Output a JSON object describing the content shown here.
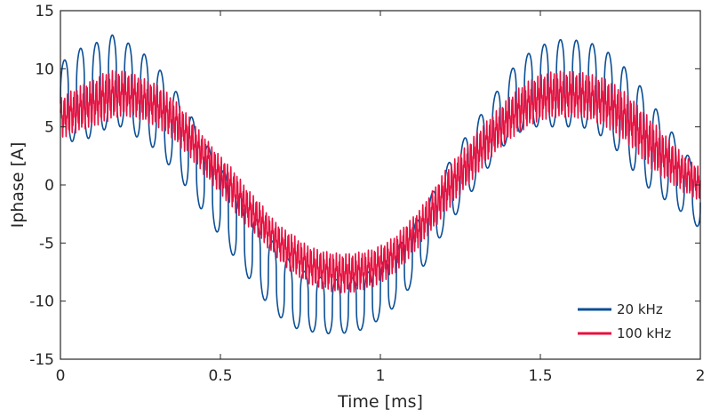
{
  "chart_data": {
    "type": "line",
    "title": "",
    "xlabel": "Time [ms]",
    "ylabel": "Iphase [A]",
    "xlim": [
      0,
      2
    ],
    "ylim": [
      -15,
      15
    ],
    "xticks": [
      0,
      0.5,
      1,
      1.5,
      2
    ],
    "xtick_labels": [
      "0",
      "0.5",
      "1",
      "1.5",
      "2"
    ],
    "yticks": [
      -15,
      -10,
      -5,
      0,
      5,
      10,
      15
    ],
    "ytick_labels": [
      "-15",
      "-10",
      "-5",
      "0",
      "5",
      "10",
      "15"
    ],
    "grid": false,
    "legend_position": "bottom-right",
    "series": [
      {
        "name": "20 kHz",
        "color": "#0b4f96",
        "x": [
          0,
          0.025,
          0.05,
          0.075,
          0.1,
          0.125,
          0.15,
          0.175,
          0.2,
          0.225,
          0.25,
          0.275,
          0.3,
          0.325,
          0.35,
          0.375,
          0.4,
          0.425,
          0.45,
          0.475,
          0.5,
          0.525,
          0.55,
          0.575,
          0.6,
          0.625,
          0.65,
          0.675,
          0.7,
          0.725,
          0.75,
          0.775,
          0.8,
          0.825,
          0.85,
          0.875,
          0.9,
          0.925,
          0.95,
          0.975,
          1,
          1.025,
          1.05,
          1.075,
          1.1,
          1.125,
          1.15,
          1.175,
          1.2,
          1.225,
          1.25,
          1.275,
          1.3,
          1.325,
          1.35,
          1.375,
          1.4,
          1.425,
          1.45,
          1.475,
          1.5,
          1.525,
          1.55,
          1.575,
          1.6,
          1.625,
          1.65,
          1.675,
          1.7,
          1.725,
          1.75,
          1.775,
          1.8,
          1.825,
          1.85,
          1.875,
          1.9,
          1.925,
          1.95,
          1.975,
          2
        ],
        "upper": [
          10.5,
          11.0,
          11.5,
          12.0,
          12.0,
          12.5,
          13.0,
          12.8,
          12.4,
          12.0,
          11.5,
          11.0,
          10.2,
          9.5,
          8.5,
          7.5,
          6.5,
          5.0,
          3.8,
          2.8,
          1.8,
          0.5,
          -0.5,
          -1.5,
          -2.5,
          -3.5,
          -4.5,
          -5.2,
          -6.0,
          -6.8,
          -7.3,
          -7.6,
          -7.9,
          -8.0,
          -8.1,
          -8.2,
          -8.1,
          -7.9,
          -7.7,
          -7.3,
          -6.8,
          -6.2,
          -5.5,
          -4.5,
          -3.7,
          -2.5,
          -1.3,
          0.0,
          1.2,
          2.5,
          3.5,
          4.5,
          5.5,
          6.5,
          7.5,
          8.5,
          9.5,
          10.5,
          11.0,
          11.6,
          12.0,
          12.2,
          12.4,
          12.6,
          12.5,
          12.4,
          12.3,
          12.0,
          11.6,
          11.2,
          10.5,
          9.8,
          9.0,
          8.0,
          7.0,
          6.0,
          5.0,
          4.0,
          3.0,
          2.0,
          1.0
        ],
        "lower": [
          3.5,
          3.5,
          4.0,
          4.0,
          4.0,
          4.5,
          5.0,
          5.0,
          5.0,
          4.5,
          3.8,
          3.5,
          3.0,
          2.0,
          1.5,
          0.5,
          -0.5,
          -1.5,
          -2.5,
          -3.5,
          -4.5,
          -5.5,
          -6.5,
          -7.5,
          -8.5,
          -9.5,
          -10.3,
          -11.0,
          -11.8,
          -12.2,
          -12.5,
          -12.6,
          -12.7,
          -12.8,
          -12.8,
          -12.8,
          -12.7,
          -12.6,
          -12.4,
          -12.0,
          -11.5,
          -11.0,
          -10.3,
          -9.5,
          -8.5,
          -7.5,
          -6.3,
          -5.0,
          -4.0,
          -3.0,
          -2.0,
          -1.0,
          0.0,
          1.0,
          2.0,
          3.0,
          3.8,
          4.3,
          4.8,
          5.0,
          5.0,
          5.0,
          5.0,
          5.0,
          5.0,
          5.0,
          4.8,
          4.5,
          4.0,
          3.5,
          2.5,
          1.8,
          0.8,
          0.0,
          -0.5,
          -1.0,
          -1.5,
          -2.0,
          -2.5,
          -3.0,
          -4.0
        ]
      },
      {
        "name": "100 kHz",
        "color": "#e8103f",
        "x": [
          0,
          0.025,
          0.05,
          0.075,
          0.1,
          0.125,
          0.15,
          0.175,
          0.2,
          0.225,
          0.25,
          0.275,
          0.3,
          0.325,
          0.35,
          0.375,
          0.4,
          0.425,
          0.45,
          0.475,
          0.5,
          0.525,
          0.55,
          0.575,
          0.6,
          0.625,
          0.65,
          0.675,
          0.7,
          0.725,
          0.75,
          0.775,
          0.8,
          0.825,
          0.85,
          0.875,
          0.9,
          0.925,
          0.95,
          0.975,
          1,
          1.025,
          1.05,
          1.075,
          1.1,
          1.125,
          1.15,
          1.175,
          1.2,
          1.225,
          1.25,
          1.275,
          1.3,
          1.325,
          1.35,
          1.375,
          1.4,
          1.425,
          1.45,
          1.475,
          1.5,
          1.525,
          1.55,
          1.575,
          1.6,
          1.625,
          1.65,
          1.675,
          1.7,
          1.725,
          1.75,
          1.775,
          1.8,
          1.825,
          1.85,
          1.875,
          1.9,
          1.925,
          1.95,
          1.975,
          2
        ],
        "upper": [
          7.5,
          8.0,
          8.3,
          8.8,
          9.0,
          9.5,
          9.8,
          9.9,
          9.8,
          9.6,
          9.3,
          9.0,
          8.7,
          8.2,
          7.5,
          6.8,
          6.0,
          5.0,
          4.2,
          3.3,
          2.5,
          1.8,
          1.0,
          0.0,
          -0.8,
          -1.5,
          -2.5,
          -3.2,
          -3.8,
          -4.2,
          -4.8,
          -5.2,
          -5.5,
          -5.7,
          -5.8,
          -5.9,
          -5.9,
          -5.8,
          -5.7,
          -5.5,
          -5.2,
          -4.8,
          -4.3,
          -3.5,
          -2.8,
          -2.0,
          -1.0,
          0.0,
          1.2,
          2.0,
          2.8,
          3.6,
          4.5,
          5.3,
          6.0,
          6.8,
          7.5,
          8.2,
          8.7,
          9.2,
          9.5,
          9.7,
          9.8,
          9.8,
          9.8,
          9.7,
          9.6,
          9.4,
          9.2,
          8.8,
          8.3,
          7.8,
          7.0,
          6.3,
          5.5,
          4.8,
          4.0,
          3.3,
          2.5,
          2.0,
          1.5
        ],
        "lower": [
          4.0,
          4.2,
          4.5,
          4.8,
          5.0,
          5.2,
          5.5,
          5.8,
          5.9,
          5.8,
          5.6,
          5.3,
          5.0,
          4.5,
          4.0,
          3.2,
          2.5,
          1.7,
          0.8,
          0.0,
          -0.8,
          -1.6,
          -2.5,
          -3.3,
          -4.0,
          -4.7,
          -5.5,
          -6.2,
          -7.0,
          -7.6,
          -8.0,
          -8.5,
          -8.8,
          -9.0,
          -9.2,
          -9.3,
          -9.3,
          -9.2,
          -9.0,
          -8.8,
          -8.5,
          -8.0,
          -7.5,
          -6.8,
          -6.0,
          -5.2,
          -4.3,
          -3.5,
          -2.5,
          -1.7,
          -0.8,
          0.0,
          0.8,
          1.7,
          2.5,
          3.2,
          3.8,
          4.3,
          4.8,
          5.2,
          5.5,
          5.7,
          5.8,
          5.8,
          5.8,
          5.7,
          5.6,
          5.4,
          5.0,
          4.6,
          4.0,
          3.5,
          2.8,
          2.0,
          1.3,
          0.8,
          0.3,
          -0.2,
          -0.7,
          -1.0,
          -1.5
        ]
      }
    ]
  }
}
